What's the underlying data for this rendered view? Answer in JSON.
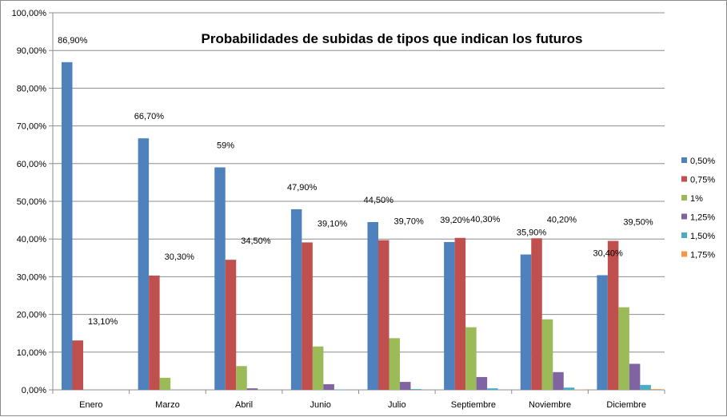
{
  "chart_data": {
    "type": "bar",
    "title": "Probabilidades de  subidas de tipos que indican los futuros",
    "xlabel": "",
    "ylabel": "",
    "ylim": [
      0,
      100
    ],
    "y_ticks": [
      "0,00%",
      "10,00%",
      "20,00%",
      "30,00%",
      "40,00%",
      "50,00%",
      "60,00%",
      "70,00%",
      "80,00%",
      "90,00%",
      "100,00%"
    ],
    "grid": true,
    "legend_position": "right",
    "categories": [
      "Enero",
      "Marzo",
      "Abril",
      "Junio",
      "Julio",
      "Septiembre",
      "Noviembre",
      "Diciembre"
    ],
    "series": [
      {
        "name": "0,50%",
        "color": "#4F81BD",
        "values": [
          86.9,
          66.7,
          59.0,
          47.9,
          44.5,
          39.2,
          35.9,
          30.4
        ]
      },
      {
        "name": "0,75%",
        "color": "#C0504D",
        "values": [
          13.1,
          30.3,
          34.5,
          39.1,
          39.7,
          40.3,
          40.2,
          39.5
        ]
      },
      {
        "name": "1%",
        "color": "#9BBB59",
        "values": [
          0,
          3.2,
          6.3,
          11.5,
          13.7,
          16.6,
          18.7,
          21.9
        ]
      },
      {
        "name": "1,25%",
        "color": "#8064A2",
        "values": [
          0,
          0,
          0.4,
          1.5,
          2.1,
          3.4,
          4.7,
          6.9
        ]
      },
      {
        "name": "1,50%",
        "color": "#4BACC6",
        "values": [
          0,
          0,
          0,
          0.1,
          0.2,
          0.4,
          0.6,
          1.3
        ]
      },
      {
        "name": "1,75%",
        "color": "#F79646",
        "values": [
          0,
          0,
          0,
          0,
          0,
          0,
          0.1,
          0.2
        ]
      }
    ],
    "data_labels": [
      {
        "category": 0,
        "series": 0,
        "text": "86,90%"
      },
      {
        "category": 0,
        "series": 1,
        "text": "13,10%"
      },
      {
        "category": 1,
        "series": 0,
        "text": "66,70%"
      },
      {
        "category": 1,
        "series": 1,
        "text": "30,30%"
      },
      {
        "category": 2,
        "series": 0,
        "text": "59%"
      },
      {
        "category": 2,
        "series": 1,
        "text": "34,50%"
      },
      {
        "category": 3,
        "series": 0,
        "text": "47,90%"
      },
      {
        "category": 3,
        "series": 1,
        "text": "39,10%"
      },
      {
        "category": 4,
        "series": 0,
        "text": "44,50%"
      },
      {
        "category": 4,
        "series": 1,
        "text": "39,70%"
      },
      {
        "category": 5,
        "series": 0,
        "text": "39,20%"
      },
      {
        "category": 5,
        "series": 1,
        "text": "40,30%"
      },
      {
        "category": 6,
        "series": 0,
        "text": "35,90%"
      },
      {
        "category": 6,
        "series": 1,
        "text": "40,20%"
      },
      {
        "category": 7,
        "series": 0,
        "text": "30,40%"
      },
      {
        "category": 7,
        "series": 1,
        "text": "39,50%"
      }
    ]
  }
}
